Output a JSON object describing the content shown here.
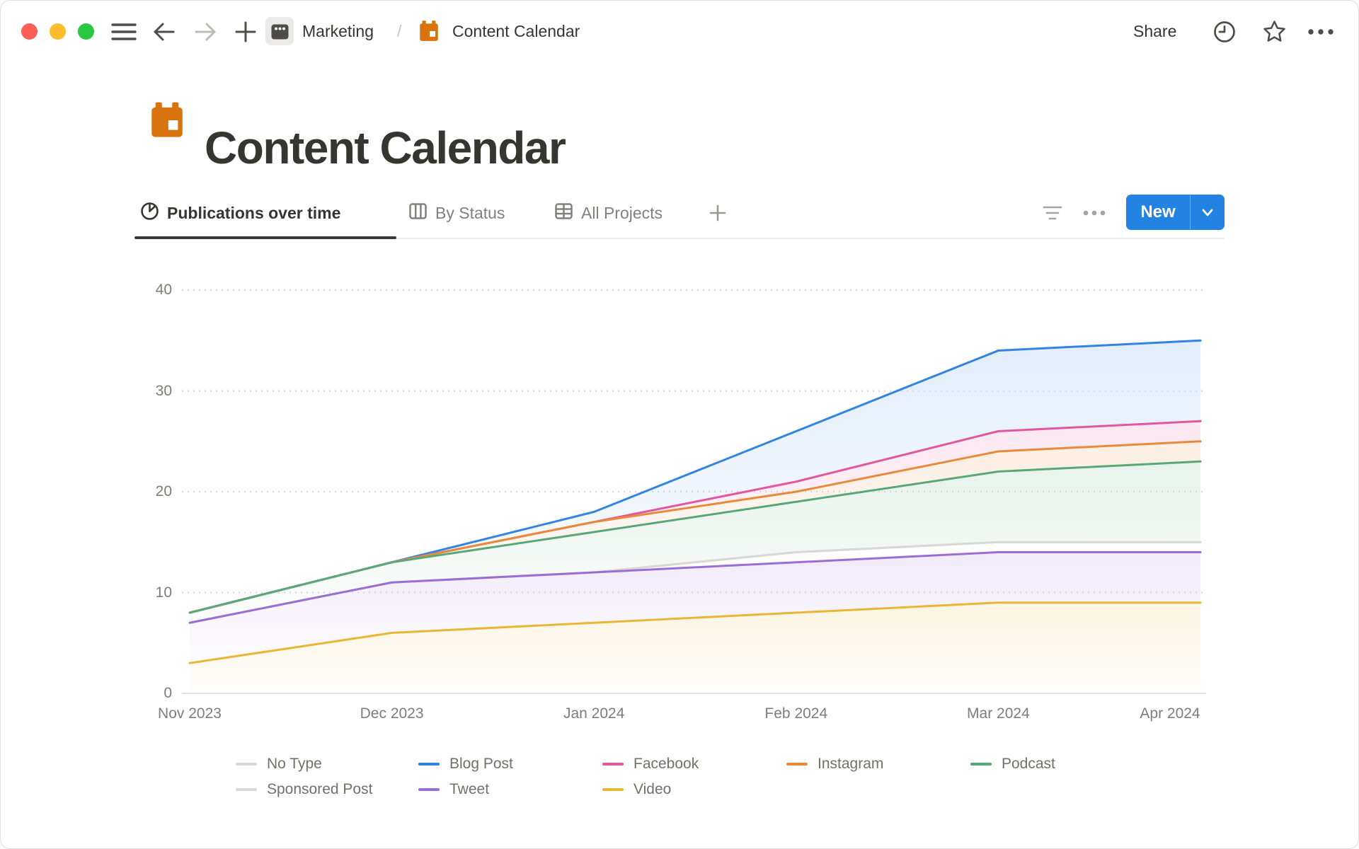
{
  "topbar": {
    "breadcrumb": [
      {
        "label": "Marketing"
      },
      {
        "label": "Content Calendar"
      }
    ],
    "separator": "/",
    "share_label": "Share"
  },
  "page": {
    "title": "Content Calendar"
  },
  "tabs": [
    {
      "label": "Publications over time",
      "active": true
    },
    {
      "label": "By Status",
      "active": false
    },
    {
      "label": "All Projects",
      "active": false
    }
  ],
  "toolbar": {
    "new_label": "New"
  },
  "colors": {
    "accent_blue": "#2383E2",
    "calendar_orange": "#D9730D",
    "traffic_red": "#FF5F57",
    "traffic_yellow": "#FEBC2E",
    "traffic_green": "#28C840"
  },
  "chart_data": {
    "type": "area",
    "title": "",
    "categories": [
      "Nov 2023",
      "Dec 2023",
      "Jan 2024",
      "Feb 2024",
      "Mar 2024",
      "Apr 2024"
    ],
    "series": [
      {
        "name": "No Type",
        "color": "#D9D8D5",
        "values": [
          7,
          11,
          12,
          14,
          15,
          15
        ]
      },
      {
        "name": "Blog Post",
        "color": "#3283E2",
        "values": [
          8,
          13,
          18,
          26,
          34,
          35
        ]
      },
      {
        "name": "Facebook",
        "color": "#E157A0",
        "values": [
          8,
          13,
          17,
          21,
          26,
          27
        ]
      },
      {
        "name": "Instagram",
        "color": "#E88A39",
        "values": [
          8,
          13,
          17,
          20,
          24,
          25
        ]
      },
      {
        "name": "Podcast",
        "color": "#58A879",
        "values": [
          8,
          13,
          16,
          19,
          22,
          23
        ]
      },
      {
        "name": "Sponsored Post",
        "color": "#D9D8D5",
        "values": [
          7,
          11,
          12,
          14,
          15,
          15
        ]
      },
      {
        "name": "Tweet",
        "color": "#9B6ED6",
        "values": [
          7,
          11,
          12,
          13,
          14,
          14
        ]
      },
      {
        "name": "Video",
        "color": "#EAB636",
        "values": [
          3,
          6,
          7,
          8,
          9,
          9
        ]
      }
    ],
    "ylim": [
      0,
      40
    ],
    "yticks": [
      0,
      10,
      20,
      30,
      40
    ],
    "grid": "dotted-horizontal",
    "legend_position": "bottom",
    "legend_rows": [
      [
        "No Type",
        "Blog Post",
        "Facebook",
        "Instagram",
        "Podcast"
      ],
      [
        "Sponsored Post",
        "Tweet",
        "Video"
      ]
    ]
  }
}
